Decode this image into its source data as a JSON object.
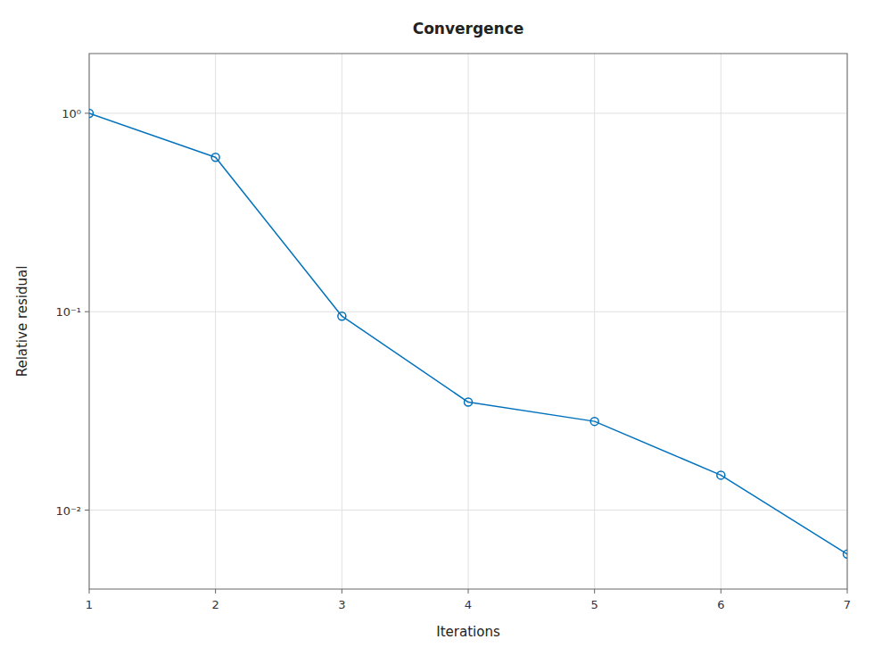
{
  "chart_data": {
    "type": "line",
    "title": "Convergence",
    "xlabel": "Iterations",
    "ylabel": "Relative residual",
    "x": [
      1,
      2,
      3,
      4,
      5,
      6,
      7
    ],
    "values": [
      1.0,
      0.6,
      0.095,
      0.035,
      0.028,
      0.015,
      0.006
    ],
    "color": "#0072BD",
    "marker": "circle",
    "log": "y",
    "xlim": [
      1,
      7
    ],
    "ylim": [
      0.004,
      2.0
    ],
    "xticks": [
      1,
      2,
      3,
      4,
      5,
      6,
      7
    ],
    "yticks": [
      {
        "value": 0.01,
        "label": "10⁻²"
      },
      {
        "value": 0.1,
        "label": "10⁻¹"
      },
      {
        "value": 1.0,
        "label": "10⁰"
      }
    ],
    "grid": true
  }
}
